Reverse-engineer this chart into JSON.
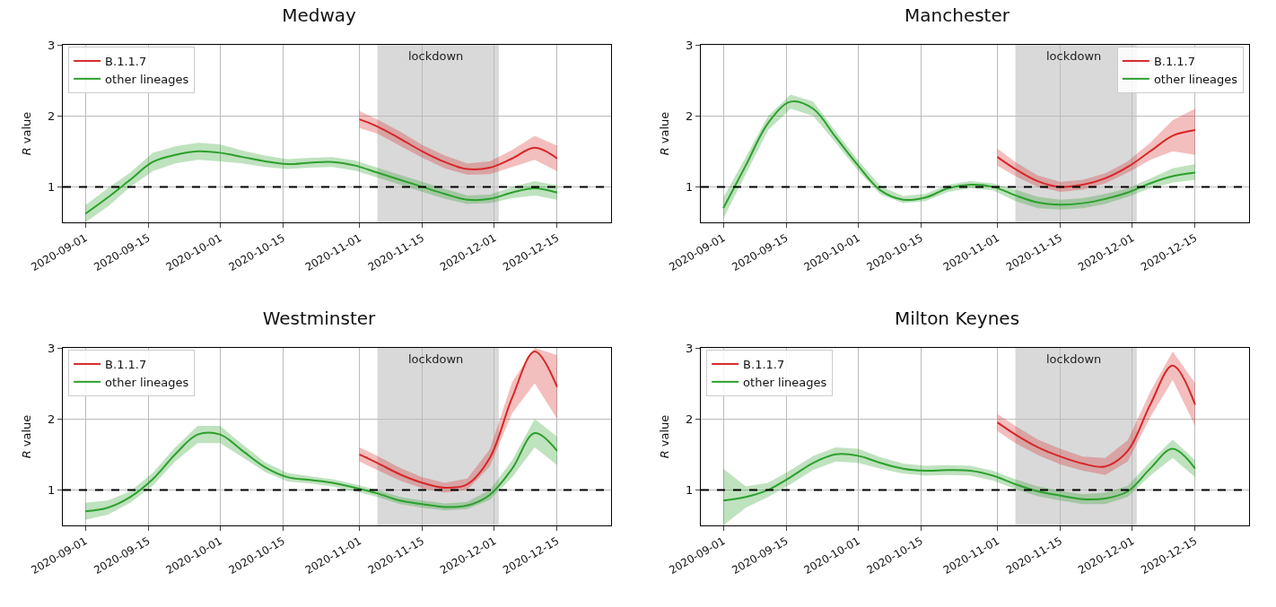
{
  "chart_data": [
    {
      "type": "line",
      "title": "Medway",
      "ylabel": "R value",
      "xlim": [
        "2020-08-27",
        "2020-12-27"
      ],
      "ylim": [
        0.5,
        3
      ],
      "yticks": [
        1,
        2,
        3
      ],
      "xticks": [
        "2020-09-01",
        "2020-09-15",
        "2020-10-01",
        "2020-10-15",
        "2020-11-01",
        "2020-11-15",
        "2020-12-01",
        "2020-12-15"
      ],
      "grid": true,
      "legend": "top left",
      "bands": [
        {
          "axis": "x",
          "from": "2020-11-05",
          "to": "2020-12-02",
          "label": "lockdown",
          "color": "#d9d9d9"
        }
      ],
      "ref_lines": [
        {
          "axis": "y",
          "value": 1,
          "line_style": "dashed",
          "color": "#000000"
        }
      ],
      "series": [
        {
          "name": "B.1.1.7",
          "color": "#d62728",
          "x": [
            "2020-11-01",
            "2020-11-05",
            "2020-11-10",
            "2020-11-15",
            "2020-11-20",
            "2020-11-25",
            "2020-11-30",
            "2020-12-05",
            "2020-12-10",
            "2020-12-15"
          ],
          "values": [
            1.95,
            1.85,
            1.68,
            1.5,
            1.35,
            1.25,
            1.27,
            1.4,
            1.55,
            1.4
          ],
          "lower": [
            1.83,
            1.75,
            1.58,
            1.41,
            1.26,
            1.17,
            1.18,
            1.28,
            1.38,
            1.22
          ],
          "upper": [
            2.07,
            1.95,
            1.78,
            1.59,
            1.44,
            1.33,
            1.36,
            1.52,
            1.72,
            1.58
          ]
        },
        {
          "name": "other lineages",
          "color": "#2ca02c",
          "x": [
            "2020-09-01",
            "2020-09-06",
            "2020-09-11",
            "2020-09-16",
            "2020-09-21",
            "2020-09-26",
            "2020-10-01",
            "2020-10-06",
            "2020-10-11",
            "2020-10-16",
            "2020-10-21",
            "2020-10-26",
            "2020-10-31",
            "2020-11-05",
            "2020-11-10",
            "2020-11-15",
            "2020-11-20",
            "2020-11-25",
            "2020-11-30",
            "2020-12-05",
            "2020-12-10",
            "2020-12-15"
          ],
          "values": [
            0.62,
            0.85,
            1.1,
            1.35,
            1.45,
            1.5,
            1.48,
            1.42,
            1.36,
            1.32,
            1.34,
            1.35,
            1.3,
            1.2,
            1.1,
            1.0,
            0.9,
            0.82,
            0.83,
            0.92,
            0.98,
            0.92
          ],
          "lower": [
            0.5,
            0.72,
            1.0,
            1.22,
            1.33,
            1.38,
            1.36,
            1.33,
            1.28,
            1.25,
            1.27,
            1.28,
            1.23,
            1.13,
            1.03,
            0.93,
            0.83,
            0.76,
            0.77,
            0.84,
            0.88,
            0.82
          ],
          "upper": [
            0.74,
            0.98,
            1.2,
            1.48,
            1.57,
            1.62,
            1.6,
            1.51,
            1.44,
            1.39,
            1.41,
            1.42,
            1.37,
            1.27,
            1.17,
            1.07,
            0.97,
            0.88,
            0.89,
            1.0,
            1.08,
            1.02
          ]
        }
      ]
    },
    {
      "type": "line",
      "title": "Manchester",
      "ylabel": "R value",
      "xlim": [
        "2020-08-27",
        "2020-12-27"
      ],
      "ylim": [
        0.5,
        3
      ],
      "yticks": [
        1,
        2,
        3
      ],
      "xticks": [
        "2020-09-01",
        "2020-09-15",
        "2020-10-01",
        "2020-10-15",
        "2020-11-01",
        "2020-11-15",
        "2020-12-01",
        "2020-12-15"
      ],
      "grid": true,
      "legend": "top right",
      "bands": [
        {
          "axis": "x",
          "from": "2020-11-05",
          "to": "2020-12-02",
          "label": "lockdown",
          "color": "#d9d9d9"
        }
      ],
      "ref_lines": [
        {
          "axis": "y",
          "value": 1,
          "line_style": "dashed",
          "color": "#000000"
        }
      ],
      "series": [
        {
          "name": "B.1.1.7",
          "color": "#d62728",
          "x": [
            "2020-11-01",
            "2020-11-05",
            "2020-11-10",
            "2020-11-15",
            "2020-11-20",
            "2020-11-25",
            "2020-11-30",
            "2020-12-05",
            "2020-12-10",
            "2020-12-15"
          ],
          "values": [
            1.42,
            1.25,
            1.08,
            1.0,
            1.03,
            1.12,
            1.28,
            1.5,
            1.72,
            1.8
          ],
          "lower": [
            1.3,
            1.15,
            1.0,
            0.93,
            0.96,
            1.05,
            1.2,
            1.38,
            1.5,
            1.45
          ],
          "upper": [
            1.54,
            1.35,
            1.16,
            1.07,
            1.1,
            1.19,
            1.36,
            1.62,
            1.94,
            2.1
          ]
        },
        {
          "name": "other lineages",
          "color": "#2ca02c",
          "x": [
            "2020-09-01",
            "2020-09-06",
            "2020-09-11",
            "2020-09-16",
            "2020-09-21",
            "2020-09-26",
            "2020-10-01",
            "2020-10-06",
            "2020-10-11",
            "2020-10-16",
            "2020-10-21",
            "2020-10-26",
            "2020-10-31",
            "2020-11-05",
            "2020-11-10",
            "2020-11-15",
            "2020-11-20",
            "2020-11-25",
            "2020-11-30",
            "2020-12-05",
            "2020-12-10",
            "2020-12-15"
          ],
          "values": [
            0.7,
            1.3,
            1.9,
            2.2,
            2.1,
            1.7,
            1.3,
            0.95,
            0.82,
            0.85,
            0.98,
            1.03,
            1.0,
            0.88,
            0.78,
            0.75,
            0.77,
            0.83,
            0.92,
            1.05,
            1.15,
            1.2
          ],
          "lower": [
            0.55,
            1.18,
            1.8,
            2.1,
            2.0,
            1.62,
            1.23,
            0.89,
            0.77,
            0.8,
            0.93,
            0.98,
            0.95,
            0.8,
            0.7,
            0.68,
            0.7,
            0.76,
            0.86,
            0.98,
            1.06,
            1.1
          ],
          "upper": [
            0.85,
            1.42,
            2.0,
            2.3,
            2.2,
            1.78,
            1.37,
            1.01,
            0.87,
            0.9,
            1.03,
            1.08,
            1.05,
            0.96,
            0.86,
            0.82,
            0.84,
            0.9,
            0.98,
            1.12,
            1.26,
            1.32
          ]
        }
      ]
    },
    {
      "type": "line",
      "title": "Westminster",
      "ylabel": "R value",
      "xlim": [
        "2020-08-27",
        "2020-12-27"
      ],
      "ylim": [
        0.5,
        3
      ],
      "yticks": [
        1,
        2,
        3
      ],
      "xticks": [
        "2020-09-01",
        "2020-09-15",
        "2020-10-01",
        "2020-10-15",
        "2020-11-01",
        "2020-11-15",
        "2020-12-01",
        "2020-12-15"
      ],
      "grid": true,
      "legend": "top left",
      "bands": [
        {
          "axis": "x",
          "from": "2020-11-05",
          "to": "2020-12-02",
          "label": "lockdown",
          "color": "#d9d9d9"
        }
      ],
      "ref_lines": [
        {
          "axis": "y",
          "value": 1,
          "line_style": "dashed",
          "color": "#000000"
        }
      ],
      "series": [
        {
          "name": "B.1.1.7",
          "color": "#d62728",
          "x": [
            "2020-11-01",
            "2020-11-05",
            "2020-11-10",
            "2020-11-15",
            "2020-11-20",
            "2020-11-25",
            "2020-11-30",
            "2020-12-05",
            "2020-12-10",
            "2020-12-15"
          ],
          "values": [
            1.5,
            1.38,
            1.22,
            1.1,
            1.03,
            1.08,
            1.45,
            2.3,
            2.95,
            2.45
          ],
          "lower": [
            1.4,
            1.28,
            1.13,
            1.02,
            0.96,
            1.0,
            1.33,
            2.08,
            2.5,
            2.0
          ],
          "upper": [
            1.6,
            1.48,
            1.31,
            1.18,
            1.1,
            1.16,
            1.57,
            2.52,
            3.0,
            2.9
          ]
        },
        {
          "name": "other lineages",
          "color": "#2ca02c",
          "x": [
            "2020-09-01",
            "2020-09-06",
            "2020-09-11",
            "2020-09-16",
            "2020-09-21",
            "2020-09-26",
            "2020-10-01",
            "2020-10-06",
            "2020-10-11",
            "2020-10-16",
            "2020-10-21",
            "2020-10-26",
            "2020-10-31",
            "2020-11-05",
            "2020-11-10",
            "2020-11-15",
            "2020-11-20",
            "2020-11-25",
            "2020-11-30",
            "2020-12-05",
            "2020-12-10",
            "2020-12-15"
          ],
          "values": [
            0.7,
            0.75,
            0.9,
            1.15,
            1.5,
            1.78,
            1.78,
            1.55,
            1.32,
            1.18,
            1.14,
            1.1,
            1.03,
            0.95,
            0.85,
            0.8,
            0.76,
            0.78,
            0.93,
            1.3,
            1.8,
            1.55
          ],
          "lower": [
            0.58,
            0.65,
            0.82,
            1.06,
            1.4,
            1.66,
            1.66,
            1.46,
            1.25,
            1.12,
            1.09,
            1.05,
            0.98,
            0.9,
            0.8,
            0.75,
            0.71,
            0.73,
            0.86,
            1.18,
            1.6,
            1.35
          ],
          "upper": [
            0.82,
            0.85,
            0.98,
            1.24,
            1.6,
            1.9,
            1.9,
            1.64,
            1.39,
            1.24,
            1.19,
            1.15,
            1.08,
            1.0,
            0.9,
            0.85,
            0.81,
            0.83,
            1.0,
            1.42,
            2.0,
            1.75
          ]
        }
      ]
    },
    {
      "type": "line",
      "title": "Milton Keynes",
      "ylabel": "R value",
      "xlim": [
        "2020-08-27",
        "2020-12-27"
      ],
      "ylim": [
        0.5,
        3
      ],
      "yticks": [
        1,
        2,
        3
      ],
      "xticks": [
        "2020-09-01",
        "2020-09-15",
        "2020-10-01",
        "2020-10-15",
        "2020-11-01",
        "2020-11-15",
        "2020-12-01",
        "2020-12-15"
      ],
      "grid": true,
      "legend": "top left",
      "bands": [
        {
          "axis": "x",
          "from": "2020-11-05",
          "to": "2020-12-02",
          "label": "lockdown",
          "color": "#d9d9d9"
        }
      ],
      "ref_lines": [
        {
          "axis": "y",
          "value": 1,
          "line_style": "dashed",
          "color": "#000000"
        }
      ],
      "series": [
        {
          "name": "B.1.1.7",
          "color": "#d62728",
          "x": [
            "2020-11-01",
            "2020-11-05",
            "2020-11-10",
            "2020-11-15",
            "2020-11-20",
            "2020-11-25",
            "2020-11-30",
            "2020-12-05",
            "2020-12-10",
            "2020-12-15"
          ],
          "values": [
            1.95,
            1.78,
            1.6,
            1.47,
            1.37,
            1.33,
            1.55,
            2.2,
            2.75,
            2.2
          ],
          "lower": [
            1.83,
            1.66,
            1.49,
            1.36,
            1.27,
            1.21,
            1.4,
            2.02,
            2.55,
            1.9
          ],
          "upper": [
            2.07,
            1.9,
            1.71,
            1.58,
            1.47,
            1.45,
            1.7,
            2.38,
            2.95,
            2.5
          ]
        },
        {
          "name": "other lineages",
          "color": "#2ca02c",
          "x": [
            "2020-09-01",
            "2020-09-06",
            "2020-09-11",
            "2020-09-16",
            "2020-09-21",
            "2020-09-26",
            "2020-10-01",
            "2020-10-06",
            "2020-10-11",
            "2020-10-16",
            "2020-10-21",
            "2020-10-26",
            "2020-10-31",
            "2020-11-05",
            "2020-11-10",
            "2020-11-15",
            "2020-11-20",
            "2020-11-25",
            "2020-11-30",
            "2020-12-05",
            "2020-12-10",
            "2020-12-15"
          ],
          "values": [
            0.85,
            0.9,
            1.0,
            1.18,
            1.38,
            1.5,
            1.48,
            1.38,
            1.3,
            1.27,
            1.28,
            1.27,
            1.2,
            1.08,
            0.98,
            0.92,
            0.87,
            0.88,
            0.98,
            1.3,
            1.58,
            1.3
          ],
          "lower": [
            0.5,
            0.75,
            0.9,
            1.08,
            1.28,
            1.4,
            1.38,
            1.3,
            1.23,
            1.2,
            1.21,
            1.2,
            1.13,
            1.01,
            0.91,
            0.85,
            0.8,
            0.8,
            0.9,
            1.2,
            1.45,
            1.18
          ],
          "upper": [
            1.3,
            1.05,
            1.1,
            1.28,
            1.48,
            1.6,
            1.58,
            1.46,
            1.37,
            1.34,
            1.35,
            1.34,
            1.27,
            1.15,
            1.05,
            0.99,
            0.94,
            0.96,
            1.06,
            1.4,
            1.71,
            1.42
          ]
        }
      ]
    }
  ]
}
